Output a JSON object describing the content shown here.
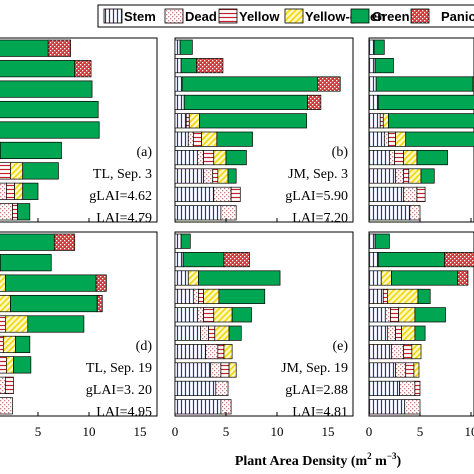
{
  "figure": {
    "xlabel_prefix": "Plant Area Density (m",
    "xlabel_sup1": "2",
    "xlabel_mid": " m",
    "xlabel_sup2": "−3",
    "xlabel_suffix": ")"
  },
  "legend": [
    {
      "key": "stem",
      "label": "Stem",
      "pattern": "stem"
    },
    {
      "key": "dead",
      "label": "Dead",
      "pattern": "dead"
    },
    {
      "key": "yellow",
      "label": "Yellow",
      "pattern": "yellow"
    },
    {
      "key": "yellow_green",
      "label": "Yellow-green",
      "pattern": "yg"
    },
    {
      "key": "green",
      "label": "Green",
      "pattern": "green"
    },
    {
      "key": "panicle",
      "label": "Panicle",
      "pattern": "panicle"
    }
  ],
  "colors": {
    "stem": "#1f2fb8",
    "dead": "#c98080",
    "yellow": "#c0242a",
    "yellow_green": "#f0d800",
    "green": "#00a651",
    "panicle": "#d23a3a"
  },
  "chart_data": [
    {
      "type": "bar",
      "orientation": "horizontal-stacked",
      "panel": "(a)",
      "lines": [
        "TL, Sep. 3",
        "gLAI=4.62",
        "LAI=4.79"
      ],
      "xlim": [
        0,
        15
      ],
      "xticks": [
        "5",
        "10",
        "15"
      ],
      "layers": [
        {
          "stem": 0.3,
          "dead": 2.2,
          "yellow": 0.5,
          "yellow_green": 0,
          "green": 1.2,
          "panicle": 0
        },
        {
          "stem": 0.3,
          "dead": 1.6,
          "yellow": 0.8,
          "yellow_green": 0.8,
          "green": 1.5,
          "panicle": 0
        },
        {
          "stem": 0.3,
          "dead": 0.5,
          "yellow": 1.5,
          "yellow_green": 1.2,
          "green": 3.5,
          "panicle": 0
        },
        {
          "stem": 0.3,
          "dead": 0,
          "yellow": 0.5,
          "yellow_green": 0.5,
          "green": 6.0,
          "panicle": 0
        },
        {
          "stem": 0.3,
          "dead": 0,
          "yellow": 0,
          "yellow_green": 0,
          "green": 10.7,
          "panicle": 0
        },
        {
          "stem": 0.3,
          "dead": 0,
          "yellow": 0,
          "yellow_green": 0,
          "green": 10.6,
          "panicle": 0
        },
        {
          "stem": 0.3,
          "dead": 0,
          "yellow": 0,
          "yellow_green": 0,
          "green": 10.0,
          "panicle": 0
        },
        {
          "stem": 0.3,
          "dead": 0,
          "yellow": 0,
          "yellow_green": 0,
          "green": 8.3,
          "panicle": 1.6
        },
        {
          "stem": 0.3,
          "dead": 0,
          "yellow": 0,
          "yellow_green": 0,
          "green": 5.7,
          "panicle": 2.2
        }
      ]
    },
    {
      "type": "bar",
      "orientation": "horizontal-stacked",
      "panel": "(b)",
      "lines": [
        "JM, Sep. 3",
        "gLAI=5.90",
        "LAI=7.20"
      ],
      "xlim": [
        0,
        15
      ],
      "xticks": [],
      "layers": [
        {
          "stem": 4.5,
          "dead": 1.5,
          "yellow": 0,
          "yellow_green": 0,
          "green": 0,
          "panicle": 0
        },
        {
          "stem": 3.8,
          "dead": 1.7,
          "yellow": 0.9,
          "yellow_green": 0,
          "green": 0,
          "panicle": 0
        },
        {
          "stem": 2.8,
          "dead": 0.9,
          "yellow": 0.5,
          "yellow_green": 1.0,
          "green": 0.8,
          "panicle": 0
        },
        {
          "stem": 2.2,
          "dead": 0.6,
          "yellow": 1.0,
          "yellow_green": 1.2,
          "green": 2.0,
          "panicle": 0
        },
        {
          "stem": 1.3,
          "dead": 0.5,
          "yellow": 0.8,
          "yellow_green": 1.5,
          "green": 3.5,
          "panicle": 0
        },
        {
          "stem": 1.1,
          "dead": 0,
          "yellow": 0.3,
          "yellow_green": 1.0,
          "green": 10.5,
          "panicle": 0
        },
        {
          "stem": 0.9,
          "dead": 0,
          "yellow": 0,
          "yellow_green": 0,
          "green": 12.1,
          "panicle": 1.3
        },
        {
          "stem": 0.7,
          "dead": 0,
          "yellow": 0,
          "yellow_green": 0,
          "green": 13.3,
          "panicle": 2.2
        },
        {
          "stem": 0.6,
          "dead": 0,
          "yellow": 0,
          "yellow_green": 0,
          "green": 1.5,
          "panicle": 2.6
        },
        {
          "stem": 0.5,
          "dead": 0,
          "yellow": 0,
          "yellow_green": 0,
          "green": 1.2,
          "panicle": 0
        }
      ]
    },
    {
      "type": "bar",
      "orientation": "horizontal-stacked",
      "panel": "",
      "lines": [],
      "xlim": [
        0,
        15
      ],
      "xticks": [],
      "layers": [
        {
          "stem": 4.0,
          "dead": 1.0,
          "yellow": 0,
          "yellow_green": 0,
          "green": 0,
          "panicle": 0
        },
        {
          "stem": 3.4,
          "dead": 1.3,
          "yellow": 0.8,
          "yellow_green": 0,
          "green": 0,
          "panicle": 0
        },
        {
          "stem": 2.6,
          "dead": 0.8,
          "yellow": 0.5,
          "yellow_green": 1.2,
          "green": 1.3,
          "panicle": 0
        },
        {
          "stem": 2.0,
          "dead": 0.5,
          "yellow": 0.9,
          "yellow_green": 1.3,
          "green": 3.0,
          "panicle": 0
        },
        {
          "stem": 1.5,
          "dead": 0.4,
          "yellow": 0.7,
          "yellow_green": 1.0,
          "green": 7.5,
          "panicle": 0
        },
        {
          "stem": 1.1,
          "dead": 0,
          "yellow": 0.3,
          "yellow_green": 0.5,
          "green": 11.0,
          "panicle": 0
        },
        {
          "stem": 0.9,
          "dead": 0,
          "yellow": 0,
          "yellow_green": 0,
          "green": 11.5,
          "panicle": 1.5
        },
        {
          "stem": 0.7,
          "dead": 0,
          "yellow": 0,
          "yellow_green": 0,
          "green": 9.5,
          "panicle": 2.0
        },
        {
          "stem": 0.6,
          "dead": 0,
          "yellow": 0,
          "yellow_green": 0,
          "green": 1.8,
          "panicle": 0
        },
        {
          "stem": 0.5,
          "dead": 0,
          "yellow": 0,
          "yellow_green": 0,
          "green": 1.0,
          "panicle": 0
        }
      ]
    },
    {
      "type": "bar",
      "orientation": "horizontal-stacked",
      "panel": "(d)",
      "lines": [
        "TL, Sep. 19",
        "gLAI=3. 20",
        "LAI=4.95"
      ],
      "xlim": [
        0,
        15
      ],
      "xticks": [
        "5",
        "10",
        "15"
      ],
      "layers": [
        {
          "stem": 0.3,
          "dead": 2.2,
          "yellow": 0,
          "yellow_green": 0,
          "green": 0,
          "panicle": 0
        },
        {
          "stem": 0.3,
          "dead": 1.5,
          "yellow": 0.8,
          "yellow_green": 0,
          "green": 0,
          "panicle": 0
        },
        {
          "stem": 0.3,
          "dead": 0.8,
          "yellow": 0.8,
          "yellow_green": 0.7,
          "green": 1.7,
          "panicle": 0
        },
        {
          "stem": 0.3,
          "dead": 0.5,
          "yellow": 0.8,
          "yellow_green": 1.2,
          "green": 1.4,
          "panicle": 0
        },
        {
          "stem": 0.3,
          "dead": 0,
          "yellow": 1.5,
          "yellow_green": 2.2,
          "green": 5.5,
          "panicle": 0
        },
        {
          "stem": 0.3,
          "dead": 0,
          "yellow": 0.5,
          "yellow_green": 1.5,
          "green": 8.5,
          "panicle": 0.5
        },
        {
          "stem": 0.3,
          "dead": 0,
          "yellow": 0,
          "yellow_green": 1.5,
          "green": 8.9,
          "panicle": 1.0
        },
        {
          "stem": 0.3,
          "dead": 0,
          "yellow": 0,
          "yellow_green": 1.0,
          "green": 5.0,
          "panicle": 0
        },
        {
          "stem": 0.3,
          "dead": 0,
          "yellow": 0,
          "yellow_green": 0,
          "green": 6.3,
          "panicle": 2.0
        }
      ]
    },
    {
      "type": "bar",
      "orientation": "horizontal-stacked",
      "panel": "(e)",
      "lines": [
        "JM, Sep. 19",
        "gLAI=2.88",
        "LAI=4.81"
      ],
      "xlim": [
        0,
        15
      ],
      "xticks": [
        "0",
        "5",
        "10",
        "15"
      ],
      "layers": [
        {
          "stem": 4.5,
          "dead": 1.0,
          "yellow": 0,
          "yellow_green": 0,
          "green": 0,
          "panicle": 0
        },
        {
          "stem": 4.0,
          "dead": 1.2,
          "yellow": 0,
          "yellow_green": 0,
          "green": 0,
          "panicle": 0
        },
        {
          "stem": 3.5,
          "dead": 1.0,
          "yellow": 0.8,
          "yellow_green": 0.7,
          "green": 0,
          "panicle": 0
        },
        {
          "stem": 3.0,
          "dead": 1.2,
          "yellow": 0.6,
          "yellow_green": 0.8,
          "green": 0,
          "panicle": 0
        },
        {
          "stem": 2.5,
          "dead": 0.8,
          "yellow": 0.6,
          "yellow_green": 1.4,
          "green": 1.2,
          "panicle": 0
        },
        {
          "stem": 2.2,
          "dead": 0.6,
          "yellow": 1.0,
          "yellow_green": 1.8,
          "green": 1.9,
          "panicle": 0
        },
        {
          "stem": 1.8,
          "dead": 0.5,
          "yellow": 0.5,
          "yellow_green": 1.5,
          "green": 4.5,
          "panicle": 0
        },
        {
          "stem": 1.3,
          "dead": 0,
          "yellow": 0,
          "yellow_green": 1.0,
          "green": 8.0,
          "panicle": 0
        },
        {
          "stem": 0.8,
          "dead": 0,
          "yellow": 0,
          "yellow_green": 0,
          "green": 4.0,
          "panicle": 2.5
        },
        {
          "stem": 0.6,
          "dead": 0,
          "yellow": 0,
          "yellow_green": 0,
          "green": 0.9,
          "panicle": 0
        }
      ]
    },
    {
      "type": "bar",
      "orientation": "horizontal-stacked",
      "panel": "",
      "lines": [],
      "xlim": [
        0,
        15
      ],
      "xticks": [
        "0",
        "5",
        "10"
      ],
      "layers": [
        {
          "stem": 3.5,
          "dead": 1.5,
          "yellow": 0,
          "yellow_green": 0,
          "green": 0,
          "panicle": 0
        },
        {
          "stem": 3.0,
          "dead": 1.5,
          "yellow": 0.5,
          "yellow_green": 0,
          "green": 0,
          "panicle": 0
        },
        {
          "stem": 2.6,
          "dead": 1.0,
          "yellow": 0.8,
          "yellow_green": 0.5,
          "green": 0,
          "panicle": 0
        },
        {
          "stem": 2.2,
          "dead": 1.2,
          "yellow": 0.8,
          "yellow_green": 0.9,
          "green": 0,
          "panicle": 0
        },
        {
          "stem": 1.8,
          "dead": 0.8,
          "yellow": 0.6,
          "yellow_green": 1.3,
          "green": 1.0,
          "panicle": 0
        },
        {
          "stem": 1.6,
          "dead": 0.5,
          "yellow": 0.8,
          "yellow_green": 1.6,
          "green": 3.0,
          "panicle": 0
        },
        {
          "stem": 1.4,
          "dead": 0,
          "yellow": 0.4,
          "yellow_green": 3.0,
          "green": 1.2,
          "panicle": 0
        },
        {
          "stem": 1.2,
          "dead": 0,
          "yellow": 0,
          "yellow_green": 1.0,
          "green": 6.5,
          "panicle": 1.0
        },
        {
          "stem": 0.9,
          "dead": 0,
          "yellow": 0,
          "yellow_green": 0,
          "green": 6.5,
          "panicle": 3.0
        },
        {
          "stem": 0.6,
          "dead": 0,
          "yellow": 0,
          "yellow_green": 0,
          "green": 1.4,
          "panicle": 0
        }
      ]
    }
  ]
}
